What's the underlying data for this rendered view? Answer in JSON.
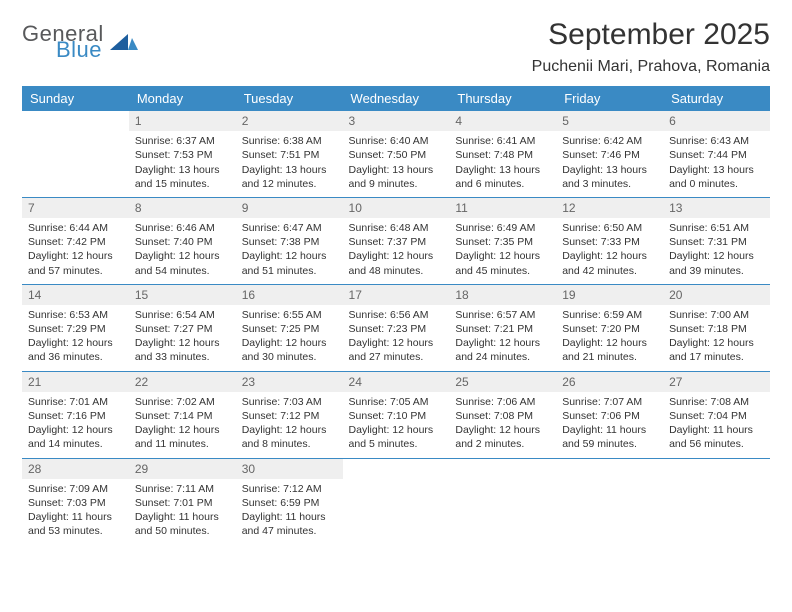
{
  "brand": {
    "general": "General",
    "blue": "Blue"
  },
  "header": {
    "month_title": "September 2025",
    "location": "Puchenii Mari, Prahova, Romania"
  },
  "colors": {
    "header_bg": "#3a8ac4",
    "header_text": "#ffffff",
    "daynum_bg": "#efefef",
    "daynum_text": "#666666",
    "row_border": "#3a8ac4",
    "body_text": "#333333",
    "logo_gray": "#58595b",
    "logo_blue": "#3a8ac4"
  },
  "weekdays": [
    "Sunday",
    "Monday",
    "Tuesday",
    "Wednesday",
    "Thursday",
    "Friday",
    "Saturday"
  ],
  "weeks": [
    [
      null,
      {
        "n": "1",
        "sr": "Sunrise: 6:37 AM",
        "ss": "Sunset: 7:53 PM",
        "d1": "Daylight: 13 hours",
        "d2": "and 15 minutes."
      },
      {
        "n": "2",
        "sr": "Sunrise: 6:38 AM",
        "ss": "Sunset: 7:51 PM",
        "d1": "Daylight: 13 hours",
        "d2": "and 12 minutes."
      },
      {
        "n": "3",
        "sr": "Sunrise: 6:40 AM",
        "ss": "Sunset: 7:50 PM",
        "d1": "Daylight: 13 hours",
        "d2": "and 9 minutes."
      },
      {
        "n": "4",
        "sr": "Sunrise: 6:41 AM",
        "ss": "Sunset: 7:48 PM",
        "d1": "Daylight: 13 hours",
        "d2": "and 6 minutes."
      },
      {
        "n": "5",
        "sr": "Sunrise: 6:42 AM",
        "ss": "Sunset: 7:46 PM",
        "d1": "Daylight: 13 hours",
        "d2": "and 3 minutes."
      },
      {
        "n": "6",
        "sr": "Sunrise: 6:43 AM",
        "ss": "Sunset: 7:44 PM",
        "d1": "Daylight: 13 hours",
        "d2": "and 0 minutes."
      }
    ],
    [
      {
        "n": "7",
        "sr": "Sunrise: 6:44 AM",
        "ss": "Sunset: 7:42 PM",
        "d1": "Daylight: 12 hours",
        "d2": "and 57 minutes."
      },
      {
        "n": "8",
        "sr": "Sunrise: 6:46 AM",
        "ss": "Sunset: 7:40 PM",
        "d1": "Daylight: 12 hours",
        "d2": "and 54 minutes."
      },
      {
        "n": "9",
        "sr": "Sunrise: 6:47 AM",
        "ss": "Sunset: 7:38 PM",
        "d1": "Daylight: 12 hours",
        "d2": "and 51 minutes."
      },
      {
        "n": "10",
        "sr": "Sunrise: 6:48 AM",
        "ss": "Sunset: 7:37 PM",
        "d1": "Daylight: 12 hours",
        "d2": "and 48 minutes."
      },
      {
        "n": "11",
        "sr": "Sunrise: 6:49 AM",
        "ss": "Sunset: 7:35 PM",
        "d1": "Daylight: 12 hours",
        "d2": "and 45 minutes."
      },
      {
        "n": "12",
        "sr": "Sunrise: 6:50 AM",
        "ss": "Sunset: 7:33 PM",
        "d1": "Daylight: 12 hours",
        "d2": "and 42 minutes."
      },
      {
        "n": "13",
        "sr": "Sunrise: 6:51 AM",
        "ss": "Sunset: 7:31 PM",
        "d1": "Daylight: 12 hours",
        "d2": "and 39 minutes."
      }
    ],
    [
      {
        "n": "14",
        "sr": "Sunrise: 6:53 AM",
        "ss": "Sunset: 7:29 PM",
        "d1": "Daylight: 12 hours",
        "d2": "and 36 minutes."
      },
      {
        "n": "15",
        "sr": "Sunrise: 6:54 AM",
        "ss": "Sunset: 7:27 PM",
        "d1": "Daylight: 12 hours",
        "d2": "and 33 minutes."
      },
      {
        "n": "16",
        "sr": "Sunrise: 6:55 AM",
        "ss": "Sunset: 7:25 PM",
        "d1": "Daylight: 12 hours",
        "d2": "and 30 minutes."
      },
      {
        "n": "17",
        "sr": "Sunrise: 6:56 AM",
        "ss": "Sunset: 7:23 PM",
        "d1": "Daylight: 12 hours",
        "d2": "and 27 minutes."
      },
      {
        "n": "18",
        "sr": "Sunrise: 6:57 AM",
        "ss": "Sunset: 7:21 PM",
        "d1": "Daylight: 12 hours",
        "d2": "and 24 minutes."
      },
      {
        "n": "19",
        "sr": "Sunrise: 6:59 AM",
        "ss": "Sunset: 7:20 PM",
        "d1": "Daylight: 12 hours",
        "d2": "and 21 minutes."
      },
      {
        "n": "20",
        "sr": "Sunrise: 7:00 AM",
        "ss": "Sunset: 7:18 PM",
        "d1": "Daylight: 12 hours",
        "d2": "and 17 minutes."
      }
    ],
    [
      {
        "n": "21",
        "sr": "Sunrise: 7:01 AM",
        "ss": "Sunset: 7:16 PM",
        "d1": "Daylight: 12 hours",
        "d2": "and 14 minutes."
      },
      {
        "n": "22",
        "sr": "Sunrise: 7:02 AM",
        "ss": "Sunset: 7:14 PM",
        "d1": "Daylight: 12 hours",
        "d2": "and 11 minutes."
      },
      {
        "n": "23",
        "sr": "Sunrise: 7:03 AM",
        "ss": "Sunset: 7:12 PM",
        "d1": "Daylight: 12 hours",
        "d2": "and 8 minutes."
      },
      {
        "n": "24",
        "sr": "Sunrise: 7:05 AM",
        "ss": "Sunset: 7:10 PM",
        "d1": "Daylight: 12 hours",
        "d2": "and 5 minutes."
      },
      {
        "n": "25",
        "sr": "Sunrise: 7:06 AM",
        "ss": "Sunset: 7:08 PM",
        "d1": "Daylight: 12 hours",
        "d2": "and 2 minutes."
      },
      {
        "n": "26",
        "sr": "Sunrise: 7:07 AM",
        "ss": "Sunset: 7:06 PM",
        "d1": "Daylight: 11 hours",
        "d2": "and 59 minutes."
      },
      {
        "n": "27",
        "sr": "Sunrise: 7:08 AM",
        "ss": "Sunset: 7:04 PM",
        "d1": "Daylight: 11 hours",
        "d2": "and 56 minutes."
      }
    ],
    [
      {
        "n": "28",
        "sr": "Sunrise: 7:09 AM",
        "ss": "Sunset: 7:03 PM",
        "d1": "Daylight: 11 hours",
        "d2": "and 53 minutes."
      },
      {
        "n": "29",
        "sr": "Sunrise: 7:11 AM",
        "ss": "Sunset: 7:01 PM",
        "d1": "Daylight: 11 hours",
        "d2": "and 50 minutes."
      },
      {
        "n": "30",
        "sr": "Sunrise: 7:12 AM",
        "ss": "Sunset: 6:59 PM",
        "d1": "Daylight: 11 hours",
        "d2": "and 47 minutes."
      },
      null,
      null,
      null,
      null
    ]
  ]
}
